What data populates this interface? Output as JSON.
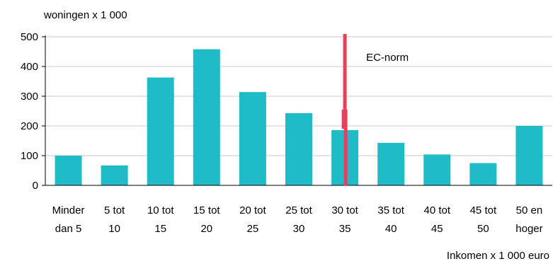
{
  "chart_data": {
    "type": "bar",
    "ylabel": "woningen x 1 000",
    "xlabel": "Inkomen x 1 000 euro",
    "ylim": [
      0,
      500
    ],
    "yticks": [
      0,
      100,
      200,
      300,
      400,
      500
    ],
    "grid": true,
    "categories": [
      [
        "Minder",
        "dan 5"
      ],
      [
        "5 tot",
        "10"
      ],
      [
        "10 tot",
        "15"
      ],
      [
        "15 tot",
        "20"
      ],
      [
        "20 tot",
        "25"
      ],
      [
        "25 tot",
        "30"
      ],
      [
        "30 tot",
        "35"
      ],
      [
        "35 tot",
        "40"
      ],
      [
        "40 tot",
        "45"
      ],
      [
        "45 tot",
        "50"
      ],
      [
        "50 en",
        "hoger"
      ]
    ],
    "values": [
      100,
      67,
      363,
      458,
      314,
      243,
      186,
      143,
      104,
      75,
      200
    ],
    "reference_line": {
      "label": "EC-norm",
      "category_index": 6
    },
    "colors": {
      "bar": "#1fbcc8",
      "reference_line": "#e8405a",
      "grid": "#c8c8c8",
      "axis": "#000000"
    }
  }
}
